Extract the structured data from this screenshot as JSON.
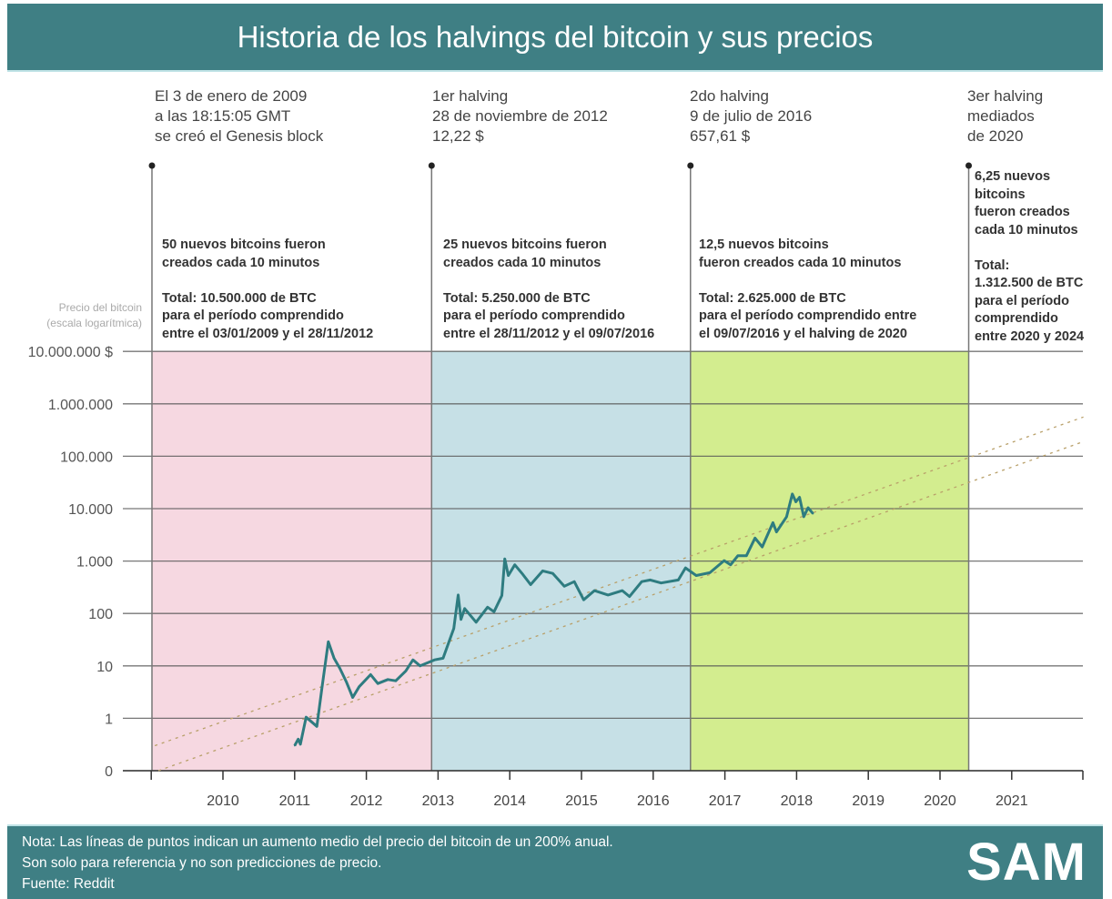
{
  "title": "Historia de los halvings del bitcoin y sus precios",
  "events": [
    {
      "year": 2009.01,
      "label": "El 3 de enero de 2009\na las 18:15:05 GMT\nse creó el Genesis block"
    },
    {
      "year": 2012.91,
      "label": "1er halving\n28 de noviembre de 2012\n12,22 $"
    },
    {
      "year": 2016.52,
      "label": "2do halving\n9 de julio de 2016\n657,61 $"
    },
    {
      "year": 2020.4,
      "label": "3er halving\nmediados\nde 2020"
    }
  ],
  "periods": [
    {
      "color": "#f6d8e1",
      "text": "50 nuevos bitcoins fueron\ncreados cada 10 minutos\n\nTotal: 10.500.000 de BTC\npara el período comprendido\nentre el 03/01/2009 y el 28/11/2012"
    },
    {
      "color": "#c6e0e6",
      "text": "25 nuevos bitcoins fueron\ncreados cada 10 minutos\n\nTotal: 5.250.000 de BTC\npara el período comprendido\nentre el 28/11/2012 y el 09/07/2016"
    },
    {
      "color": "#d3ed8f",
      "text": "12,5 nuevos bitcoins\nfueron creados cada 10 minutos\n\nTotal: 2.625.000 de BTC\npara el período comprendido entre\nel 09/07/2016 y el halving de 2020"
    },
    {
      "color": "#ffffff",
      "text": "6,25 nuevos\nbitcoins\nfueron creados\ncada 10 minutos\n\nTotal:\n1.312.500 de BTC\npara el período\ncomprendido\nentre 2020 y 2024"
    }
  ],
  "chart_data": {
    "type": "line",
    "title": "Historia de los halvings del bitcoin y sus precios",
    "ylabel": "Precio del bitcoin\n(escala logarítmica)",
    "yscale": "log",
    "ylim": [
      0.1,
      10000000
    ],
    "xlim": [
      2008.6,
      2022.0
    ],
    "yticks": [
      {
        "value": 10000000,
        "label": "10.000.000 $"
      },
      {
        "value": 1000000,
        "label": "1.000.000"
      },
      {
        "value": 100000,
        "label": "100.000"
      },
      {
        "value": 10000,
        "label": "10.000"
      },
      {
        "value": 1000,
        "label": "1.000"
      },
      {
        "value": 100,
        "label": "100"
      },
      {
        "value": 10,
        "label": "10"
      },
      {
        "value": 1,
        "label": "1"
      },
      {
        "value": 0.1,
        "label": "0"
      }
    ],
    "xticks": [
      2009,
      2010,
      2011,
      2012,
      2013,
      2014,
      2015,
      2016,
      2017,
      2018,
      2019,
      2020,
      2021
    ],
    "xtick_labels": [
      "",
      "2010",
      "2011",
      "2012",
      "2013",
      "2014",
      "2015",
      "2016",
      "2017",
      "2018",
      "2019",
      "2020",
      "2021"
    ],
    "line_color": "#2e7c80",
    "series": [
      {
        "name": "Precio del bitcoin",
        "points": [
          [
            2011.0,
            0.3
          ],
          [
            2011.05,
            0.4
          ],
          [
            2011.08,
            0.32
          ],
          [
            2011.16,
            1.05
          ],
          [
            2011.31,
            0.7
          ],
          [
            2011.38,
            3.7
          ],
          [
            2011.47,
            29
          ],
          [
            2011.55,
            14
          ],
          [
            2011.63,
            9
          ],
          [
            2011.72,
            5
          ],
          [
            2011.81,
            2.5
          ],
          [
            2011.9,
            4
          ],
          [
            2012.06,
            6.8
          ],
          [
            2012.16,
            4.6
          ],
          [
            2012.3,
            5.5
          ],
          [
            2012.41,
            5.2
          ],
          [
            2012.55,
            8
          ],
          [
            2012.65,
            13
          ],
          [
            2012.75,
            10
          ],
          [
            2012.95,
            13
          ],
          [
            2013.07,
            14
          ],
          [
            2013.22,
            52
          ],
          [
            2013.28,
            225
          ],
          [
            2013.32,
            77
          ],
          [
            2013.37,
            124
          ],
          [
            2013.53,
            68
          ],
          [
            2013.69,
            132
          ],
          [
            2013.78,
            108
          ],
          [
            2013.89,
            220
          ],
          [
            2013.93,
            1100
          ],
          [
            2013.98,
            530
          ],
          [
            2014.07,
            850
          ],
          [
            2014.18,
            560
          ],
          [
            2014.29,
            355
          ],
          [
            2014.46,
            650
          ],
          [
            2014.6,
            580
          ],
          [
            2014.76,
            330
          ],
          [
            2014.9,
            405
          ],
          [
            2015.03,
            182
          ],
          [
            2015.18,
            273
          ],
          [
            2015.37,
            225
          ],
          [
            2015.57,
            273
          ],
          [
            2015.67,
            210
          ],
          [
            2015.84,
            405
          ],
          [
            2015.96,
            435
          ],
          [
            2016.11,
            382
          ],
          [
            2016.35,
            435
          ],
          [
            2016.45,
            740
          ],
          [
            2016.6,
            530
          ],
          [
            2016.79,
            600
          ],
          [
            2016.99,
            1020
          ],
          [
            2017.08,
            850
          ],
          [
            2017.18,
            1260
          ],
          [
            2017.3,
            1260
          ],
          [
            2017.42,
            2750
          ],
          [
            2017.52,
            1860
          ],
          [
            2017.67,
            5400
          ],
          [
            2017.72,
            3600
          ],
          [
            2017.86,
            7000
          ],
          [
            2017.94,
            19000
          ],
          [
            2017.99,
            13500
          ],
          [
            2018.04,
            16500
          ],
          [
            2018.1,
            7000
          ],
          [
            2018.16,
            10400
          ],
          [
            2018.23,
            8000
          ]
        ]
      }
    ],
    "reference_lines": [
      {
        "name": "200% anual (superior)",
        "from": [
          2009.05,
          0.3
        ],
        "to": [
          2022.0,
          560000
        ]
      },
      {
        "name": "200% anual (inferior)",
        "from": [
          2009.1,
          0.1
        ],
        "to": [
          2022.0,
          190000
        ]
      }
    ]
  },
  "footer": {
    "note_lines": [
      "Nota: Las líneas de puntos indican un aumento medio del precio del bitcoin de un 200% anual.",
      "Son solo para referencia y no son predicciones de precio.",
      "Fuente: Reddit"
    ],
    "logo": "SAM"
  }
}
